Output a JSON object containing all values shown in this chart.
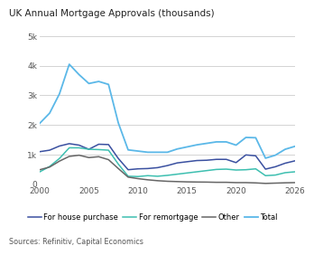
{
  "title": "UK Annual Mortgage Approvals (thousands)",
  "source": "Sources: Refinitiv, Capital Economics",
  "xlim": [
    2000,
    2026
  ],
  "ylim": [
    0,
    5000
  ],
  "yticks": [
    0,
    1000,
    2000,
    3000,
    4000,
    5000
  ],
  "ytick_labels": [
    "0",
    "1k",
    "2k",
    "3k",
    "4k",
    "5k"
  ],
  "xticks": [
    2000,
    2005,
    2010,
    2015,
    2020,
    2026
  ],
  "series": {
    "house_purchase": {
      "label": "For house purchase",
      "color": "#3a50a0",
      "linewidth": 1.1,
      "x": [
        2000,
        2001,
        2002,
        2003,
        2004,
        2005,
        2006,
        2007,
        2008,
        2009,
        2010,
        2011,
        2012,
        2013,
        2014,
        2015,
        2016,
        2017,
        2018,
        2019,
        2020,
        2021,
        2022,
        2023,
        2024,
        2025,
        2026
      ],
      "y": [
        1100,
        1150,
        1290,
        1370,
        1320,
        1180,
        1350,
        1340,
        870,
        490,
        520,
        530,
        560,
        630,
        720,
        760,
        800,
        810,
        840,
        840,
        730,
        990,
        960,
        510,
        590,
        710,
        790
      ]
    },
    "remortgage": {
      "label": "For remortgage",
      "color": "#3dbfb0",
      "linewidth": 1.1,
      "x": [
        2000,
        2001,
        2002,
        2003,
        2004,
        2005,
        2006,
        2007,
        2008,
        2009,
        2010,
        2011,
        2012,
        2013,
        2014,
        2015,
        2016,
        2017,
        2018,
        2019,
        2020,
        2021,
        2022,
        2023,
        2024,
        2025,
        2026
      ],
      "y": [
        420,
        600,
        870,
        1230,
        1230,
        1180,
        1170,
        1150,
        680,
        270,
        260,
        290,
        270,
        300,
        340,
        380,
        420,
        460,
        500,
        510,
        480,
        490,
        520,
        290,
        310,
        390,
        420
      ]
    },
    "other": {
      "label": "Other",
      "color": "#666666",
      "linewidth": 1.1,
      "x": [
        2000,
        2001,
        2002,
        2003,
        2004,
        2005,
        2006,
        2007,
        2008,
        2009,
        2010,
        2011,
        2012,
        2013,
        2014,
        2015,
        2016,
        2017,
        2018,
        2019,
        2020,
        2021,
        2022,
        2023,
        2024,
        2025,
        2026
      ],
      "y": [
        490,
        580,
        780,
        940,
        980,
        900,
        930,
        830,
        530,
        240,
        190,
        150,
        120,
        100,
        90,
        80,
        75,
        72,
        65,
        65,
        55,
        55,
        45,
        28,
        38,
        48,
        55
      ]
    },
    "total": {
      "label": "Total",
      "color": "#5bb8e8",
      "linewidth": 1.3,
      "x": [
        2000,
        2001,
        2002,
        2003,
        2004,
        2005,
        2006,
        2007,
        2008,
        2009,
        2010,
        2011,
        2012,
        2013,
        2014,
        2015,
        2016,
        2017,
        2018,
        2019,
        2020,
        2021,
        2022,
        2023,
        2024,
        2025,
        2026
      ],
      "y": [
        2060,
        2400,
        3050,
        4050,
        3700,
        3400,
        3470,
        3370,
        2070,
        1160,
        1120,
        1080,
        1080,
        1080,
        1190,
        1260,
        1330,
        1380,
        1430,
        1430,
        1320,
        1580,
        1570,
        880,
        980,
        1180,
        1280
      ]
    }
  },
  "background_color": "#ffffff",
  "grid_color": "#cccccc",
  "legend_order": [
    "house_purchase",
    "remortgage",
    "other",
    "total"
  ]
}
